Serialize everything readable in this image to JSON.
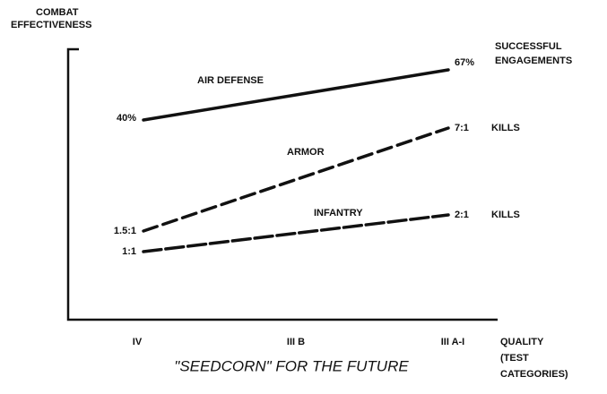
{
  "y_axis_label": [
    "COMBAT",
    "EFFECTIVENESS"
  ],
  "right_labels": {
    "air_defense": [
      "SUCCESSFUL",
      "ENGAGEMENTS"
    ],
    "armor": "KILLS",
    "infantry": "KILLS"
  },
  "series": [
    {
      "name": "AIR DEFENSE",
      "start": "40%",
      "end": "67%"
    },
    {
      "name": "ARMOR",
      "start": "1.5:1",
      "end": "7:1"
    },
    {
      "name": "INFANTRY",
      "start": "1:1",
      "end": "2:1"
    }
  ],
  "categories": [
    "IV",
    "III B",
    "III A-I"
  ],
  "x_axis_label": [
    "QUALITY",
    "(TEST",
    "CATEGORIES)"
  ],
  "caption": "\"SEEDCORN\" FOR THE FUTURE"
}
